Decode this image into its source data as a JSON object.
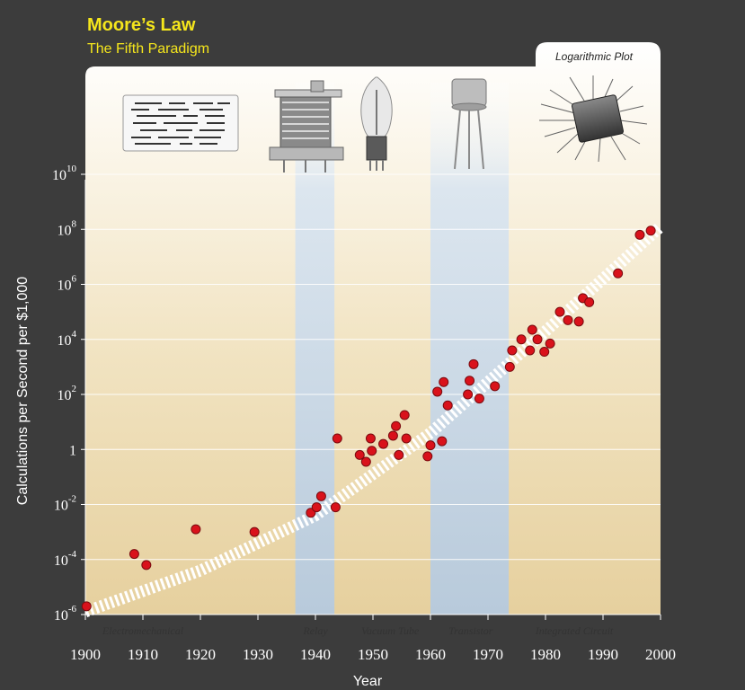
{
  "title": "Moore’s Law",
  "subtitle": "The Fifth Paradigm",
  "badge": "Logarithmic Plot",
  "colors": {
    "background": "#3c3c3c",
    "title": "#f5e61c",
    "point": "#d9121b",
    "trend": "#ffffff",
    "band": "#b9cde0"
  },
  "chart_data": {
    "type": "scatter",
    "title": "Moore’s Law",
    "subtitle": "The Fifth Paradigm",
    "xlabel": "Year",
    "ylabel": "Calculations per Second per $1,000",
    "xlim": [
      1900,
      2000
    ],
    "ylim_log10": [
      -6,
      10
    ],
    "y_scale": "log",
    "x_ticks": [
      1900,
      1910,
      1920,
      1930,
      1940,
      1950,
      1960,
      1970,
      1980,
      1990,
      2000
    ],
    "y_ticks": [
      {
        "exp": -6,
        "base": "10",
        "sup": "-6"
      },
      {
        "exp": -4,
        "base": "10",
        "sup": "-4"
      },
      {
        "exp": -2,
        "base": "10",
        "sup": "-2"
      },
      {
        "exp": 0,
        "base": "1",
        "sup": ""
      },
      {
        "exp": 2,
        "base": "10",
        "sup": "2"
      },
      {
        "exp": 4,
        "base": "10",
        "sup": "4"
      },
      {
        "exp": 6,
        "base": "10",
        "sup": "6"
      },
      {
        "exp": 8,
        "base": "10",
        "sup": "8"
      },
      {
        "exp": 10,
        "base": "10",
        "sup": "10"
      }
    ],
    "eras": [
      {
        "name": "Electromechanical",
        "label_year": 1910
      },
      {
        "name": "Relay",
        "label_year": 1940,
        "band": [
          1936.5,
          1943.3
        ]
      },
      {
        "name": "Vacuum Tube",
        "label_year": 1953
      },
      {
        "name": "Transistor",
        "label_year": 1967,
        "band": [
          1960.0,
          1973.6
        ]
      },
      {
        "name": "Integrated Circuit",
        "label_year": 1985
      }
    ],
    "trend_line": [
      [
        1900,
        -5.9
      ],
      [
        1920,
        -4.4
      ],
      [
        1940,
        -2.4
      ],
      [
        1960,
        0.6
      ],
      [
        1980,
        4.3
      ],
      [
        2000,
        8.1
      ]
    ],
    "points_log10": [
      [
        1900.2,
        -5.7
      ],
      [
        1908.5,
        -3.8
      ],
      [
        1910.6,
        -4.2
      ],
      [
        1919.2,
        -2.9
      ],
      [
        1929.4,
        -3.0
      ],
      [
        1939.2,
        -2.3
      ],
      [
        1940.2,
        -2.1
      ],
      [
        1941.0,
        -1.7
      ],
      [
        1943.5,
        -2.1
      ],
      [
        1943.8,
        0.4
      ],
      [
        1947.7,
        -0.2
      ],
      [
        1948.8,
        -0.45
      ],
      [
        1949.6,
        0.4
      ],
      [
        1949.8,
        -0.05
      ],
      [
        1951.8,
        0.2
      ],
      [
        1953.5,
        0.5
      ],
      [
        1954.0,
        0.85
      ],
      [
        1954.5,
        -0.2
      ],
      [
        1955.5,
        1.25
      ],
      [
        1955.8,
        0.4
      ],
      [
        1959.5,
        -0.25
      ],
      [
        1960.0,
        0.15
      ],
      [
        1961.2,
        2.1
      ],
      [
        1962.0,
        0.3
      ],
      [
        1962.3,
        2.45
      ],
      [
        1963.0,
        1.6
      ],
      [
        1966.5,
        2.0
      ],
      [
        1966.8,
        2.5
      ],
      [
        1967.5,
        3.1
      ],
      [
        1968.5,
        1.85
      ],
      [
        1971.2,
        2.3
      ],
      [
        1973.8,
        3.0
      ],
      [
        1974.2,
        3.6
      ],
      [
        1975.8,
        4.0
      ],
      [
        1977.3,
        3.6
      ],
      [
        1977.7,
        4.35
      ],
      [
        1978.6,
        4.0
      ],
      [
        1979.8,
        3.55
      ],
      [
        1980.8,
        3.85
      ],
      [
        1982.5,
        5.0
      ],
      [
        1983.9,
        4.7
      ],
      [
        1985.8,
        4.65
      ],
      [
        1986.5,
        5.5
      ],
      [
        1987.6,
        5.35
      ],
      [
        1992.6,
        6.4
      ],
      [
        1996.4,
        7.8
      ],
      [
        1998.3,
        7.95
      ]
    ]
  }
}
